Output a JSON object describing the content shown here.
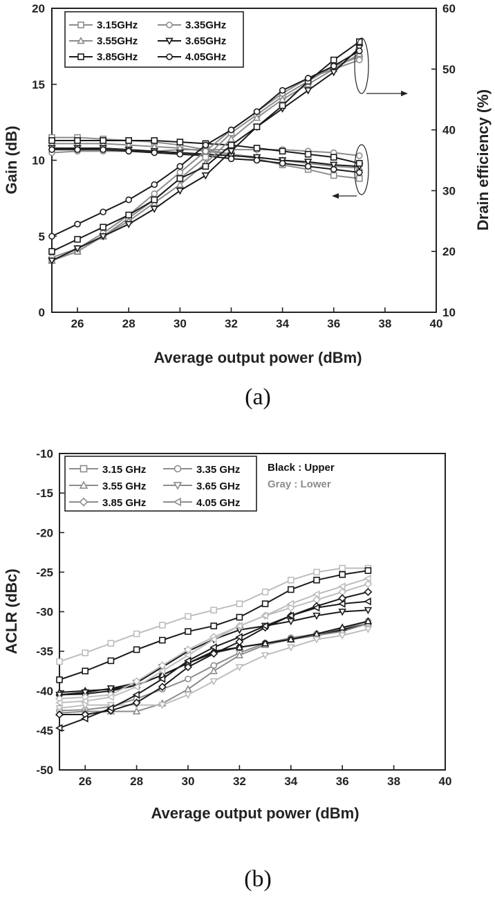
{
  "colors": {
    "black": "#1a1a1a",
    "gray": "#8c8c8c",
    "light_gray": "#bdbdbd"
  },
  "chart_data": [
    {
      "type": "line",
      "caption": "(a)",
      "xlabel": "Average output power (dBm)",
      "ylabel": "Gain (dB)",
      "ylabel_right": "Drain efficiency (%)",
      "xlim": [
        25,
        40
      ],
      "ylim": [
        0,
        20
      ],
      "ylim_right": [
        10,
        60
      ],
      "xticks": [
        26,
        28,
        30,
        32,
        34,
        36,
        38,
        40
      ],
      "yticks": [
        0,
        5,
        10,
        15,
        20
      ],
      "yticks_right": [
        10,
        20,
        30,
        40,
        50,
        60
      ],
      "x": [
        25,
        26,
        27,
        28,
        29,
        30,
        31,
        32,
        33,
        34,
        35,
        36,
        37
      ],
      "legend_position": "top-left",
      "legend": [
        "3.15GHz",
        "3.35GHz",
        "3.55GHz",
        "3.65GHz",
        "3.85GHz",
        "4.05GHz"
      ],
      "gain_series": [
        {
          "name": "3.15GHz",
          "color": "gray",
          "marker": "square",
          "values": [
            11.5,
            11.5,
            11.4,
            11.3,
            11.2,
            11.0,
            10.7,
            10.4,
            10.1,
            9.7,
            9.4,
            9.0,
            8.8
          ]
        },
        {
          "name": "3.35GHz",
          "color": "gray",
          "marker": "circle",
          "values": [
            10.5,
            10.6,
            10.6,
            10.6,
            10.6,
            10.7,
            10.7,
            10.7,
            10.7,
            10.7,
            10.6,
            10.5,
            10.3
          ]
        },
        {
          "name": "3.55GHz",
          "color": "gray",
          "marker": "triangle",
          "values": [
            11.1,
            11.1,
            11.1,
            11.0,
            10.9,
            10.8,
            10.6,
            10.4,
            10.2,
            10.0,
            9.8,
            9.6,
            9.5
          ]
        },
        {
          "name": "3.65GHz",
          "color": "black",
          "marker": "triangle-down",
          "values": [
            10.8,
            10.8,
            10.8,
            10.7,
            10.6,
            10.5,
            10.4,
            10.3,
            10.2,
            10.0,
            9.9,
            9.7,
            9.6
          ]
        },
        {
          "name": "3.85GHz",
          "color": "black",
          "marker": "square",
          "values": [
            11.3,
            11.3,
            11.3,
            11.3,
            11.3,
            11.2,
            11.1,
            11.0,
            10.8,
            10.6,
            10.4,
            10.2,
            9.8
          ]
        },
        {
          "name": "4.05GHz",
          "color": "black",
          "marker": "circle",
          "values": [
            10.7,
            10.7,
            10.7,
            10.6,
            10.5,
            10.4,
            10.3,
            10.1,
            10.0,
            9.8,
            9.6,
            9.4,
            9.2
          ]
        }
      ],
      "efficiency_series": [
        {
          "name": "3.15GHz",
          "color": "gray",
          "marker": "square",
          "values": [
            18.5,
            20.0,
            22.5,
            25.5,
            28.5,
            32.0,
            35.5,
            39.5,
            42.5,
            45.5,
            48.0,
            50.5,
            52.0
          ]
        },
        {
          "name": "3.35GHz",
          "color": "gray",
          "marker": "circle",
          "values": [
            19.0,
            20.5,
            23.0,
            26.0,
            29.5,
            33.0,
            36.5,
            40.0,
            43.0,
            46.0,
            48.5,
            50.0,
            51.5
          ]
        },
        {
          "name": "3.55GHz",
          "color": "gray",
          "marker": "triangle",
          "values": [
            18.5,
            20.0,
            22.5,
            25.0,
            28.0,
            31.0,
            34.5,
            38.5,
            42.0,
            45.0,
            47.5,
            50.0,
            52.5
          ]
        },
        {
          "name": "3.65GHz",
          "color": "black",
          "marker": "triangle-down",
          "values": [
            18.5,
            20.5,
            22.5,
            24.5,
            27.0,
            30.0,
            32.5,
            36.5,
            40.5,
            43.5,
            46.5,
            49.5,
            53.5
          ]
        },
        {
          "name": "3.85GHz",
          "color": "black",
          "marker": "square",
          "values": [
            20.0,
            22.0,
            24.0,
            26.0,
            28.5,
            32.0,
            34.0,
            37.5,
            40.5,
            44.0,
            48.0,
            51.5,
            54.5
          ]
        },
        {
          "name": "4.05GHz",
          "color": "black",
          "marker": "circle",
          "values": [
            22.5,
            24.5,
            26.5,
            28.5,
            31.0,
            34.0,
            37.5,
            40.0,
            43.0,
            46.5,
            48.5,
            50.5,
            53.0
          ]
        }
      ]
    },
    {
      "type": "line",
      "caption": "(b)",
      "xlabel": "Average output power (dBm)",
      "ylabel": "ACLR (dBc)",
      "xlim": [
        25,
        40
      ],
      "ylim": [
        -50,
        -10
      ],
      "xticks": [
        26,
        28,
        30,
        32,
        34,
        36,
        38,
        40
      ],
      "yticks": [
        -50,
        -45,
        -40,
        -35,
        -30,
        -25,
        -20,
        -15,
        -10
      ],
      "x": [
        25,
        26,
        27,
        28,
        29,
        30,
        31,
        32,
        33,
        34,
        35,
        36,
        37
      ],
      "legend_position": "top-left",
      "legend": [
        "3.15 GHz",
        "3.35 GHz",
        "3.55 GHz",
        "3.65 GHz",
        "3.85 GHz",
        "4.05 GHz"
      ],
      "note_black": "Black : Upper",
      "note_gray": "Gray : Lower",
      "series": [
        {
          "name": "3.15 GHz",
          "side": "lower",
          "color": "light_gray",
          "marker": "square",
          "values": [
            -36.3,
            -35.2,
            -34.0,
            -32.8,
            -31.7,
            -30.6,
            -29.8,
            -29.0,
            -27.5,
            -26.0,
            -25.0,
            -24.5,
            -24.5
          ]
        },
        {
          "name": "3.15 GHz",
          "side": "upper",
          "color": "black",
          "marker": "square",
          "values": [
            -38.6,
            -37.5,
            -36.2,
            -34.8,
            -33.6,
            -32.5,
            -31.8,
            -30.7,
            -29.0,
            -27.2,
            -26.0,
            -25.3,
            -24.8
          ]
        },
        {
          "name": "3.35 GHz",
          "side": "lower",
          "color": "gray",
          "marker": "circle",
          "values": [
            -42.5,
            -42.4,
            -42.0,
            -41.0,
            -39.8,
            -38.5,
            -36.8,
            -35.2,
            -34.0,
            -33.3,
            -32.8,
            -32.2,
            -31.2
          ]
        },
        {
          "name": "3.35 GHz",
          "side": "upper",
          "color": "black",
          "marker": "circle",
          "values": [
            -40.5,
            -40.4,
            -40.0,
            -39.3,
            -38.0,
            -36.5,
            -35.2,
            -34.5,
            -34.0,
            -33.5,
            -33.0,
            -32.3,
            -31.5
          ]
        },
        {
          "name": "3.55 GHz",
          "side": "lower",
          "color": "gray",
          "marker": "triangle",
          "values": [
            -42.8,
            -42.6,
            -42.6,
            -42.6,
            -41.6,
            -39.8,
            -37.5,
            -35.5,
            -34.2,
            -33.5,
            -33.0,
            -32.5,
            -31.5
          ]
        },
        {
          "name": "3.55 GHz",
          "side": "upper",
          "color": "black",
          "marker": "triangle",
          "values": [
            -40.2,
            -40.0,
            -39.8,
            -39.3,
            -38.0,
            -36.5,
            -35.0,
            -34.5,
            -34.0,
            -33.5,
            -32.8,
            -32.0,
            -31.2
          ]
        },
        {
          "name": "3.65 GHz",
          "side": "lower",
          "color": "light_gray",
          "marker": "triangle-down",
          "values": [
            -42.2,
            -41.8,
            -41.8,
            -41.8,
            -41.8,
            -40.5,
            -38.8,
            -37.0,
            -35.5,
            -34.5,
            -33.5,
            -33.0,
            -32.2
          ]
        },
        {
          "name": "3.65 GHz",
          "side": "upper",
          "color": "black",
          "marker": "triangle-down",
          "values": [
            -40.5,
            -40.2,
            -39.7,
            -39.0,
            -37.0,
            -35.0,
            -33.5,
            -32.3,
            -31.8,
            -31.2,
            -30.5,
            -30.0,
            -29.8
          ]
        },
        {
          "name": "3.85 GHz",
          "side": "lower",
          "color": "light_gray",
          "marker": "diamond",
          "values": [
            -41.0,
            -40.8,
            -40.5,
            -38.8,
            -36.8,
            -34.8,
            -33.2,
            -31.8,
            -30.5,
            -29.5,
            -28.5,
            -27.5,
            -26.5
          ]
        },
        {
          "name": "3.85 GHz",
          "side": "upper",
          "color": "black",
          "marker": "diamond",
          "values": [
            -43.0,
            -43.0,
            -42.5,
            -41.5,
            -39.5,
            -37.0,
            -35.3,
            -33.8,
            -32.0,
            -30.5,
            -29.3,
            -28.3,
            -27.5
          ]
        },
        {
          "name": "4.05 GHz",
          "side": "lower",
          "color": "light_gray",
          "marker": "triangle-left",
          "values": [
            -41.5,
            -41.3,
            -40.8,
            -39.5,
            -37.5,
            -35.5,
            -33.5,
            -31.8,
            -30.5,
            -29.0,
            -27.8,
            -26.8,
            -25.8
          ]
        },
        {
          "name": "4.05 GHz",
          "side": "upper",
          "color": "black",
          "marker": "triangle-left",
          "values": [
            -44.7,
            -43.5,
            -42.2,
            -40.5,
            -38.5,
            -36.2,
            -34.5,
            -33.2,
            -31.8,
            -30.5,
            -29.5,
            -29.0,
            -28.7
          ]
        }
      ]
    }
  ]
}
